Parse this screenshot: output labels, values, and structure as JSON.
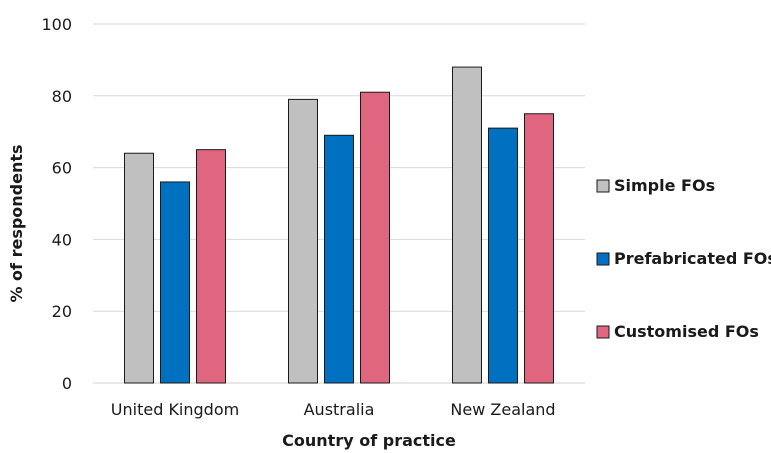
{
  "chart_data": {
    "type": "bar",
    "title": "",
    "xlabel": "Country of practice",
    "ylabel": "% of respondents",
    "categories": [
      "United Kingdom",
      "Australia",
      "New Zealand"
    ],
    "series": [
      {
        "name": "Simple FOs",
        "values": [
          64,
          79,
          88
        ],
        "color": "#c0c0c0"
      },
      {
        "name": "Prefabricated FOs",
        "values": [
          56,
          69,
          71
        ],
        "color": "#0070c0"
      },
      {
        "name": "Customised FOs",
        "values": [
          65,
          81,
          75
        ],
        "color": "#e06680"
      }
    ],
    "ylim": [
      0,
      100
    ],
    "yticks": [
      0,
      20,
      40,
      60,
      80,
      100
    ],
    "grid": true,
    "legend_position": "right"
  }
}
